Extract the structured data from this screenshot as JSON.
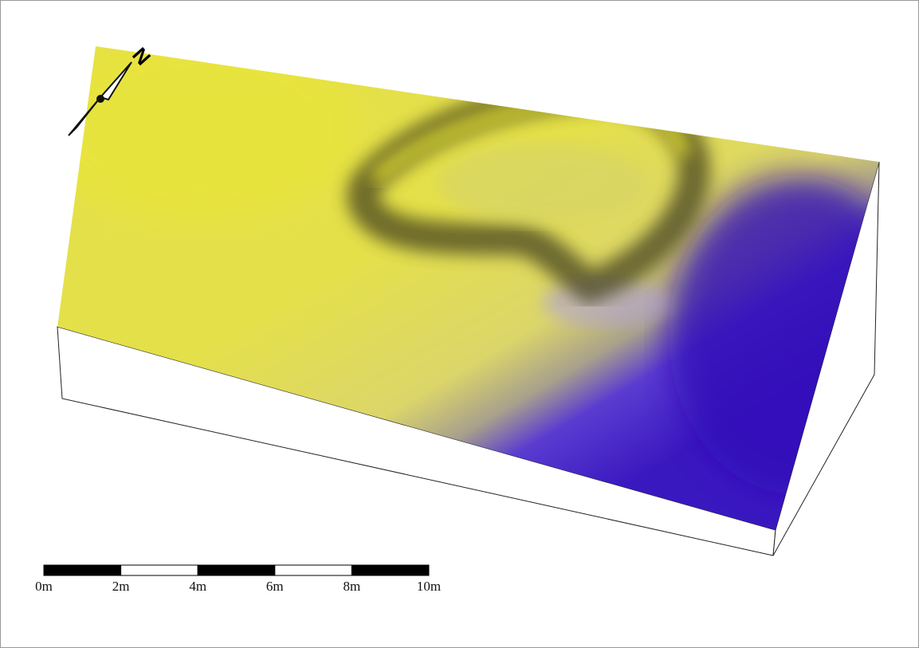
{
  "north_arrow": {
    "label": "N"
  },
  "scale_bar": {
    "labels": [
      "0m",
      "2m",
      "4m",
      "6m",
      "8m",
      "10m"
    ]
  }
}
